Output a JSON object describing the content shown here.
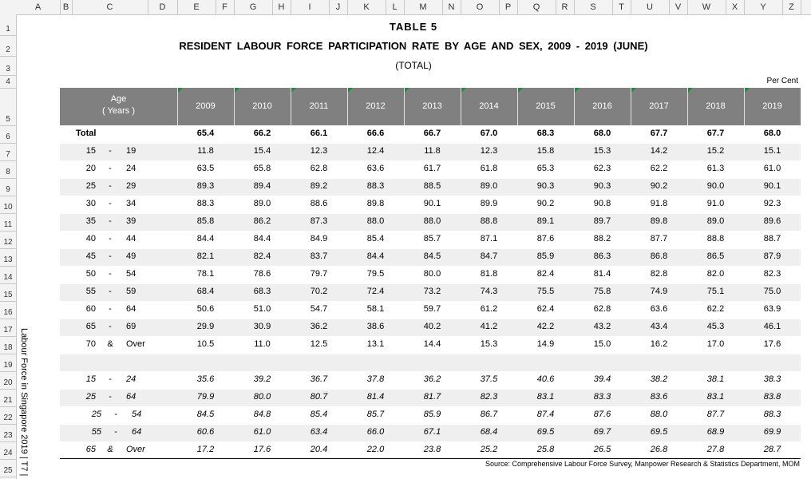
{
  "column_letters": [
    "A",
    "B",
    "C",
    "D",
    "E",
    "F",
    "G",
    "H",
    "I",
    "J",
    "K",
    "L",
    "M",
    "N",
    "O",
    "P",
    "Q",
    "R",
    "S",
    "T",
    "U",
    "V",
    "W",
    "X",
    "Y",
    "Z"
  ],
  "row_numbers": [
    1,
    2,
    3,
    4,
    5,
    6,
    7,
    8,
    9,
    10,
    11,
    12,
    13,
    14,
    15,
    16,
    17,
    18,
    19,
    20,
    21,
    22,
    23,
    24,
    25
  ],
  "header": {
    "title": "TABLE 5",
    "subtitle": "RESIDENT LABOUR FORCE PARTICIPATION RATE BY AGE AND SEX, 2009 - 2019 (JUNE)",
    "note": "(TOTAL)",
    "unit": "Per Cent"
  },
  "table": {
    "age_header": [
      "Age",
      "( Years )"
    ],
    "years": [
      "2009",
      "2010",
      "2011",
      "2012",
      "2013",
      "2014",
      "2015",
      "2016",
      "2017",
      "2018",
      "2019"
    ],
    "total": {
      "label": "Total",
      "values": [
        "65.4",
        "66.2",
        "66.1",
        "66.6",
        "66.7",
        "67.0",
        "68.3",
        "68.0",
        "67.7",
        "67.7",
        "68.0"
      ]
    },
    "rows": [
      {
        "age": [
          "15",
          "-",
          "19"
        ],
        "values": [
          "11.8",
          "15.4",
          "12.3",
          "12.4",
          "11.8",
          "12.3",
          "15.8",
          "15.3",
          "14.2",
          "15.2",
          "15.1"
        ]
      },
      {
        "age": [
          "20",
          "-",
          "24"
        ],
        "values": [
          "63.5",
          "65.8",
          "62.8",
          "63.6",
          "61.7",
          "61.8",
          "65.3",
          "62.3",
          "62.2",
          "61.3",
          "61.0"
        ]
      },
      {
        "age": [
          "25",
          "-",
          "29"
        ],
        "values": [
          "89.3",
          "89.4",
          "89.2",
          "88.3",
          "88.5",
          "89.0",
          "90.3",
          "90.3",
          "90.2",
          "90.0",
          "90.1"
        ]
      },
      {
        "age": [
          "30",
          "-",
          "34"
        ],
        "values": [
          "88.3",
          "89.0",
          "88.6",
          "89.8",
          "90.1",
          "89.9",
          "90.2",
          "90.8",
          "91.8",
          "91.0",
          "92.3"
        ]
      },
      {
        "age": [
          "35",
          "-",
          "39"
        ],
        "values": [
          "85.8",
          "86.2",
          "87.3",
          "88.0",
          "88.0",
          "88.8",
          "89.1",
          "89.7",
          "89.8",
          "89.0",
          "89.6"
        ]
      },
      {
        "age": [
          "40",
          "-",
          "44"
        ],
        "values": [
          "84.4",
          "84.4",
          "84.9",
          "85.4",
          "85.7",
          "87.1",
          "87.6",
          "88.2",
          "87.7",
          "88.8",
          "88.7"
        ]
      },
      {
        "age": [
          "45",
          "-",
          "49"
        ],
        "values": [
          "82.1",
          "82.4",
          "83.7",
          "84.4",
          "84.5",
          "84.7",
          "85.9",
          "86.3",
          "86.8",
          "86.5",
          "87.9"
        ]
      },
      {
        "age": [
          "50",
          "-",
          "54"
        ],
        "values": [
          "78.1",
          "78.6",
          "79.7",
          "79.5",
          "80.0",
          "81.8",
          "82.4",
          "81.4",
          "82.8",
          "82.0",
          "82.3"
        ]
      },
      {
        "age": [
          "55",
          "-",
          "59"
        ],
        "values": [
          "68.4",
          "68.3",
          "70.2",
          "72.4",
          "73.2",
          "74.3",
          "75.5",
          "75.8",
          "74.9",
          "75.1",
          "75.0"
        ]
      },
      {
        "age": [
          "60",
          "-",
          "64"
        ],
        "values": [
          "50.6",
          "51.0",
          "54.7",
          "58.1",
          "59.7",
          "61.2",
          "62.4",
          "62.8",
          "63.6",
          "62.2",
          "63.9"
        ]
      },
      {
        "age": [
          "65",
          "-",
          "69"
        ],
        "values": [
          "29.9",
          "30.9",
          "36.2",
          "38.6",
          "40.2",
          "41.2",
          "42.2",
          "43.2",
          "43.4",
          "45.3",
          "46.1"
        ]
      },
      {
        "age": [
          "70",
          "&",
          "Over"
        ],
        "values": [
          "10.5",
          "11.0",
          "12.5",
          "13.1",
          "14.4",
          "15.3",
          "14.9",
          "15.0",
          "16.2",
          "17.0",
          "17.6"
        ]
      }
    ],
    "summary_rows": [
      {
        "age": [
          "15",
          "-",
          "24"
        ],
        "values": [
          "35.6",
          "39.2",
          "36.7",
          "37.8",
          "36.2",
          "37.5",
          "40.6",
          "39.4",
          "38.2",
          "38.1",
          "38.3"
        ]
      },
      {
        "age": [
          "25",
          "-",
          "64"
        ],
        "values": [
          "79.9",
          "80.0",
          "80.7",
          "81.4",
          "81.7",
          "82.3",
          "83.1",
          "83.3",
          "83.6",
          "83.1",
          "83.8"
        ]
      },
      {
        "age": [
          "25",
          "-",
          "54"
        ],
        "values": [
          "84.5",
          "84.8",
          "85.4",
          "85.7",
          "85.9",
          "86.7",
          "87.4",
          "87.6",
          "88.0",
          "87.7",
          "88.3"
        ]
      },
      {
        "age": [
          "55",
          "-",
          "64"
        ],
        "values": [
          "60.6",
          "61.0",
          "63.4",
          "66.0",
          "67.1",
          "68.4",
          "69.5",
          "69.7",
          "69.5",
          "68.9",
          "69.9"
        ]
      },
      {
        "age": [
          "65",
          "&",
          "Over"
        ],
        "values": [
          "17.2",
          "17.6",
          "20.4",
          "22.0",
          "23.8",
          "25.2",
          "25.8",
          "26.5",
          "26.8",
          "27.8",
          "28.7"
        ]
      }
    ]
  },
  "footer": {
    "source": "Source: Comprehensive Labour Force Survey, Manpower Research & Statistics Department, MOM",
    "side_note": "Labour Force in Singapore 2019 | T7 |"
  }
}
